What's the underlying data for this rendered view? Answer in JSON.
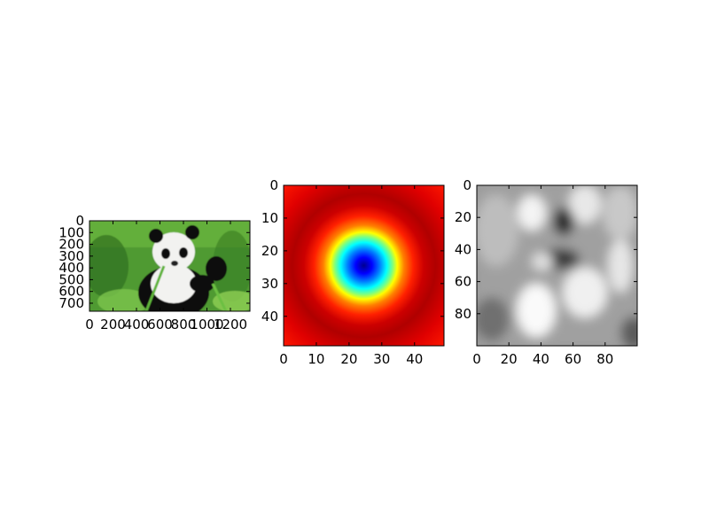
{
  "chart_data": [
    {
      "type": "image",
      "content": "panda photograph",
      "x_ticks": [
        "0",
        "200",
        "400",
        "600",
        "800",
        "1000",
        "1200"
      ],
      "y_ticks": [
        "0",
        "100",
        "200",
        "300",
        "400",
        "500",
        "600",
        "700"
      ],
      "xlim": [
        0,
        1366
      ],
      "ylim": [
        768,
        0
      ],
      "colors": {
        "grass": "#4f9a32",
        "fur_white": "#f2f2f0",
        "fur_black": "#111111"
      }
    },
    {
      "type": "heatmap",
      "colormap": "jet",
      "pattern": "radial (Gaussian-like) blob centered at the middle",
      "center": [
        24,
        24
      ],
      "x_ticks": [
        "0",
        "10",
        "20",
        "30",
        "40"
      ],
      "y_ticks": [
        "0",
        "10",
        "20",
        "30",
        "40"
      ],
      "xlim": [
        0,
        49
      ],
      "ylim": [
        49,
        0
      ]
    },
    {
      "type": "heatmap",
      "colormap": "gray",
      "pattern": "blurred grayscale panda",
      "x_ticks": [
        "0",
        "20",
        "40",
        "60",
        "80"
      ],
      "y_ticks": [
        "0",
        "20",
        "40",
        "60",
        "80"
      ],
      "xlim": [
        0,
        100
      ],
      "ylim": [
        100,
        0
      ]
    }
  ]
}
